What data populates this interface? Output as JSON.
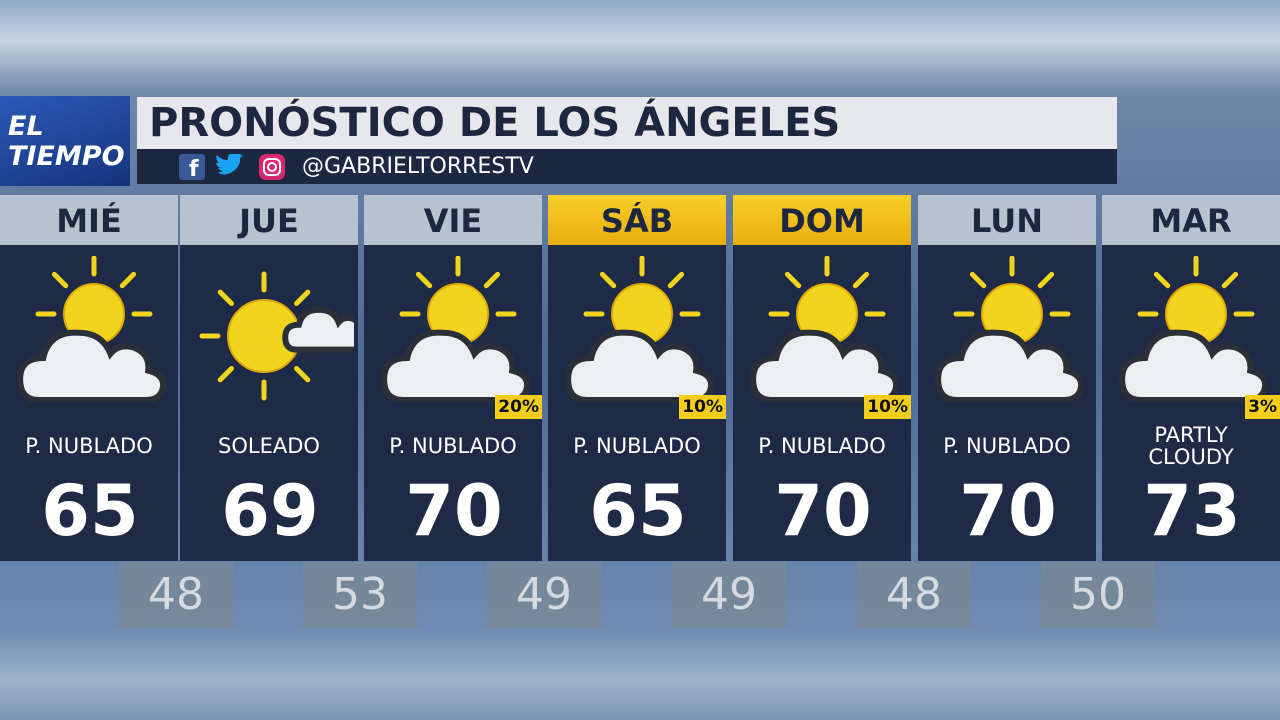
{
  "header": {
    "brand": [
      "EL",
      "TIEMPO"
    ],
    "title": "PRONÓSTICO DE LOS ÁNGELES",
    "handle": "@GABRIELTORRESTV"
  },
  "days": [
    {
      "day": "MIÉ",
      "condition": "P. NUBLADO",
      "icon": "partly-cloudy",
      "high": 65,
      "highlight": false
    },
    {
      "day": "JUE",
      "condition": "SOLEADO",
      "icon": "sunny",
      "high": 69,
      "highlight": false
    },
    {
      "day": "VIE",
      "condition": "P. NUBLADO",
      "icon": "partly-cloudy",
      "high": 70,
      "precip": "20%",
      "highlight": false
    },
    {
      "day": "SÁB",
      "condition": "P. NUBLADO",
      "icon": "partly-cloudy",
      "high": 65,
      "precip": "10%",
      "highlight": true
    },
    {
      "day": "DOM",
      "condition": "P. NUBLADO",
      "icon": "partly-cloudy",
      "high": 70,
      "precip": "10%",
      "highlight": true
    },
    {
      "day": "LUN",
      "condition": "P. NUBLADO",
      "icon": "partly-cloudy",
      "high": 70,
      "highlight": false
    },
    {
      "day": "MAR",
      "condition": "PARTLY CLOUDY",
      "icon": "partly-cloudy",
      "high": 73,
      "precip": "3%",
      "highlight": false
    }
  ],
  "lows": [
    48,
    53,
    49,
    49,
    48,
    50
  ]
}
